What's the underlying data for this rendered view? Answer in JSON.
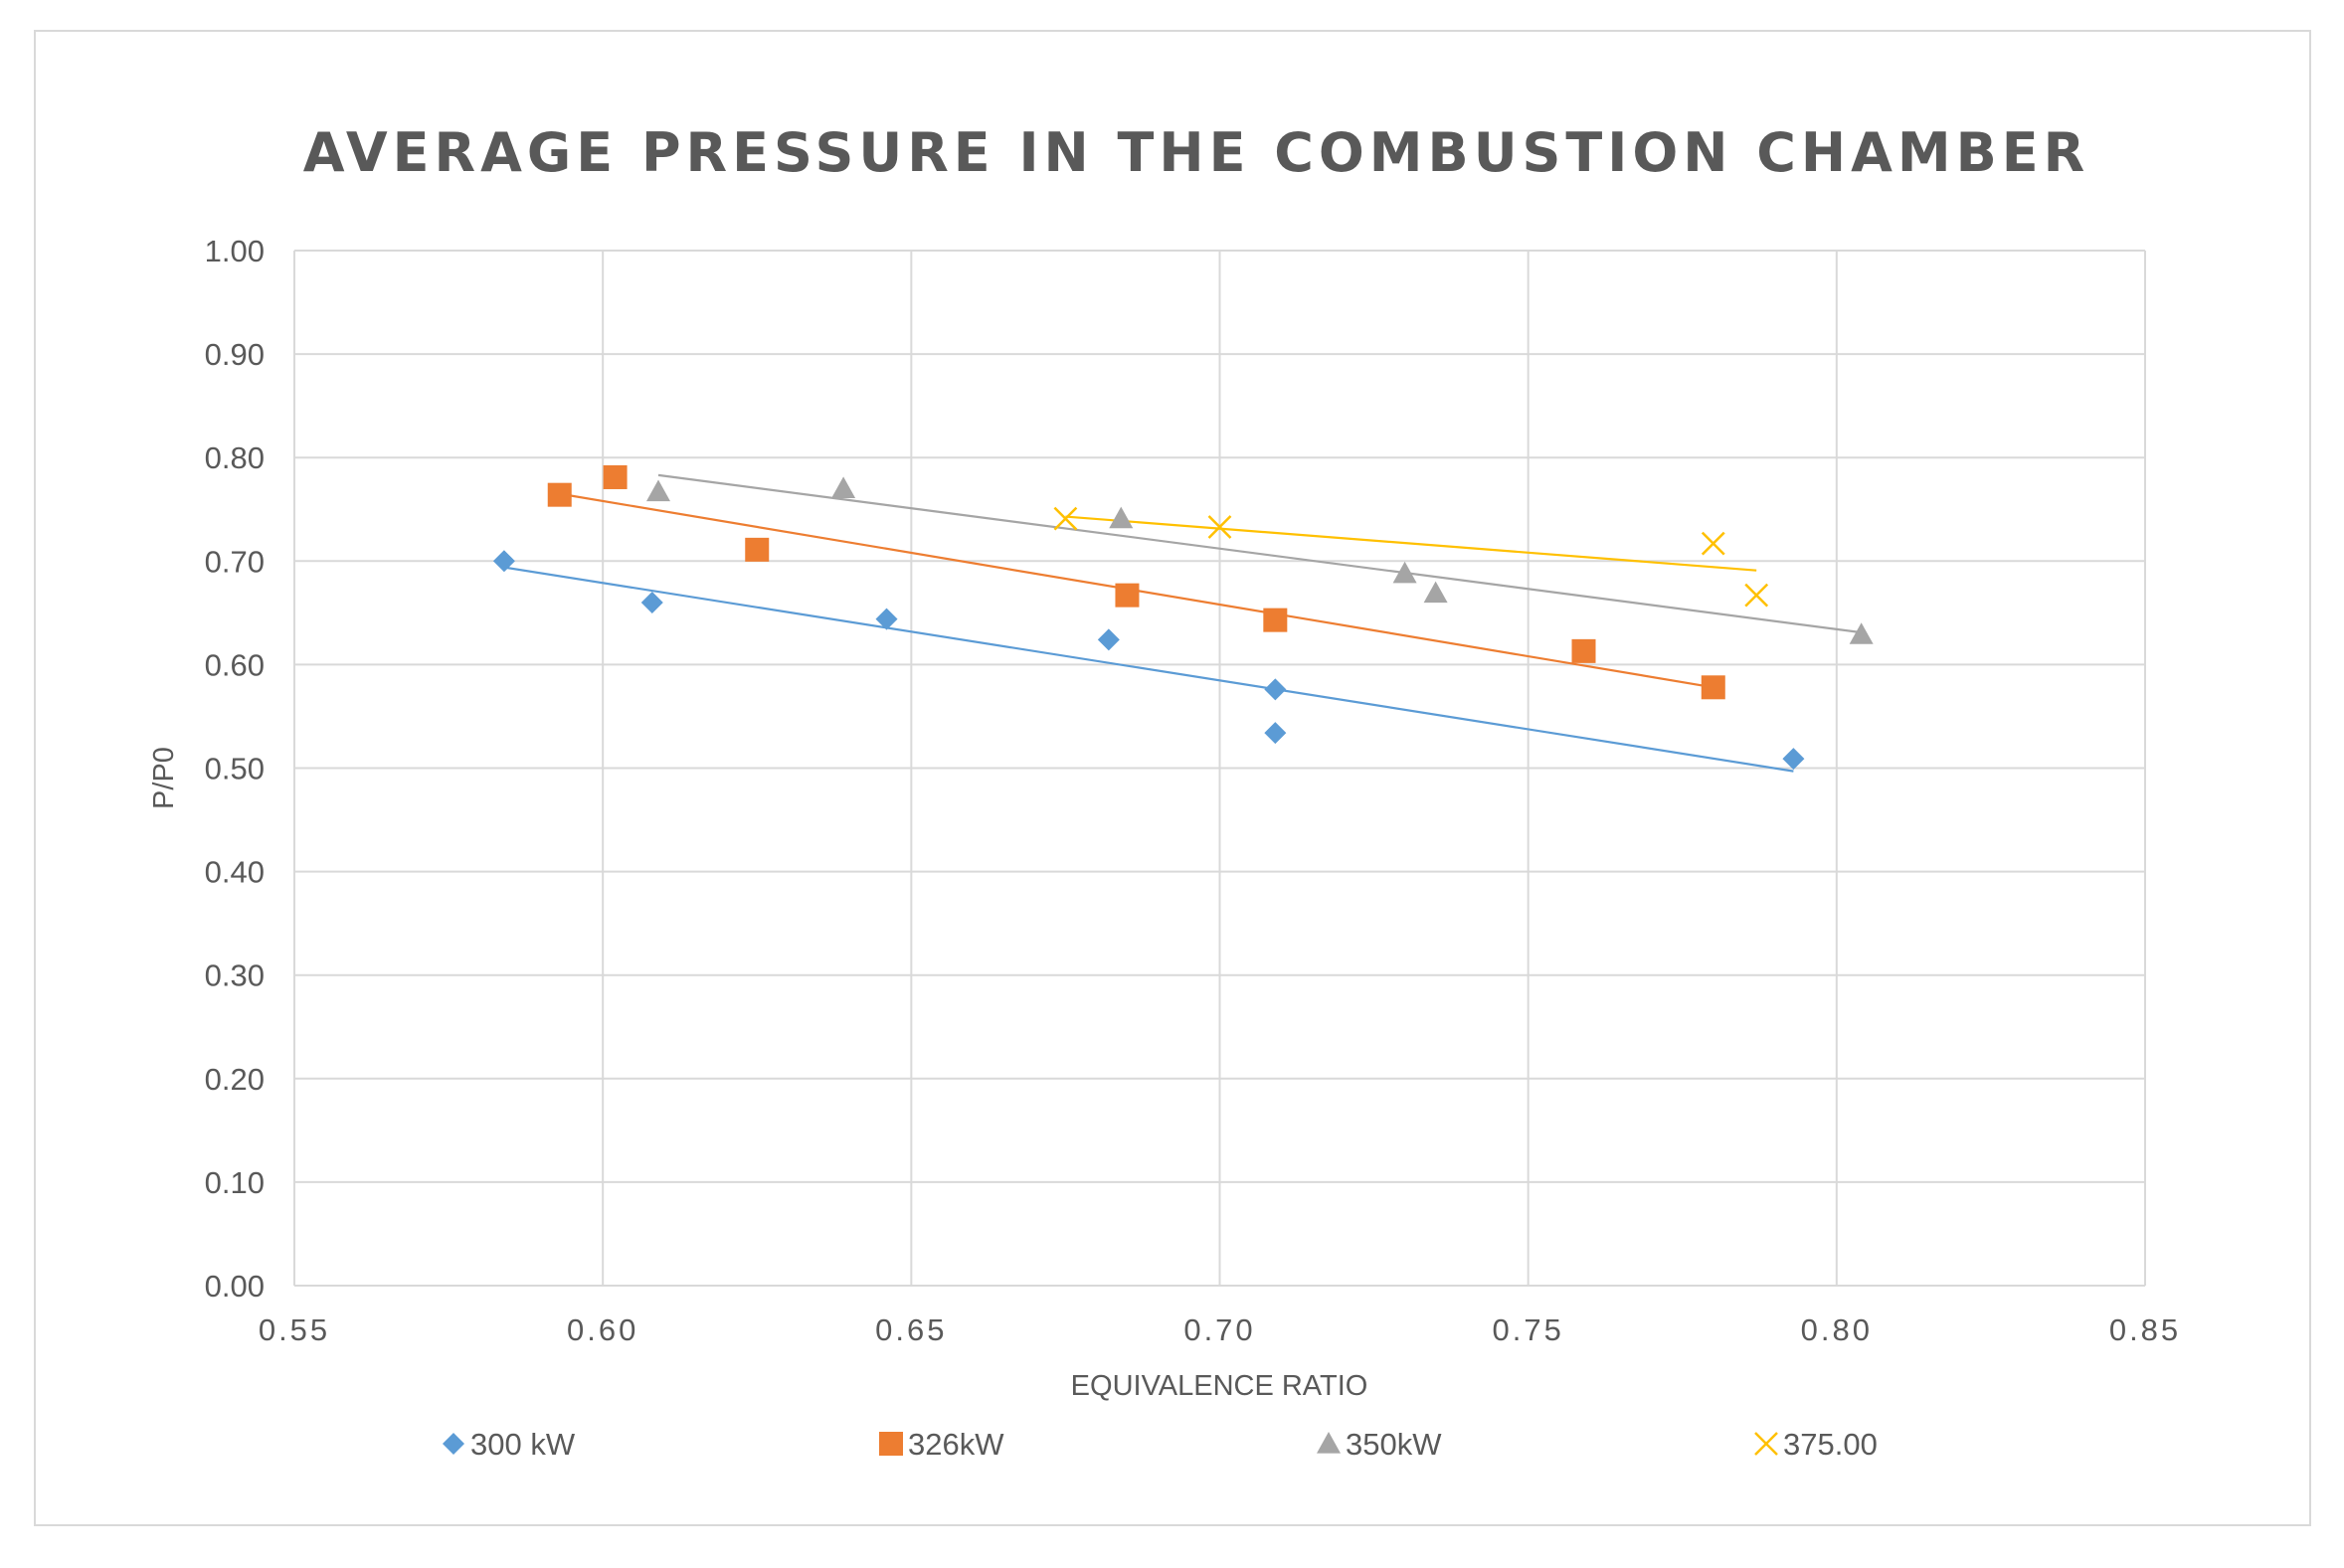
{
  "chart_data": {
    "type": "scatter",
    "title": "AVERAGE PRESSURE IN THE COMBUSTION CHAMBER",
    "xlabel": "EQUIVALENCE RATIO",
    "ylabel": "P/P0",
    "xlim": [
      0.55,
      0.85
    ],
    "ylim": [
      0.0,
      1.0
    ],
    "x_ticks": [
      "0.55",
      "0.60",
      "0.65",
      "0.70",
      "0.75",
      "0.80",
      "0.85"
    ],
    "y_ticks": [
      "0.00",
      "0.10",
      "0.20",
      "0.30",
      "0.40",
      "0.50",
      "0.60",
      "0.70",
      "0.80",
      "0.90",
      "1.00"
    ],
    "grid": true,
    "legend_position": "bottom",
    "series": [
      {
        "name": "300 kW",
        "marker": "diamond",
        "color": "#5b9bd5",
        "points": [
          [
            0.584,
            0.7
          ],
          [
            0.608,
            0.66
          ],
          [
            0.646,
            0.644
          ],
          [
            0.682,
            0.624
          ],
          [
            0.709,
            0.576
          ],
          [
            0.709,
            0.534
          ],
          [
            0.793,
            0.509
          ]
        ],
        "trendline": [
          [
            0.584,
            0.694
          ],
          [
            0.793,
            0.497
          ]
        ]
      },
      {
        "name": "326kW",
        "marker": "square",
        "color": "#ed7d31",
        "points": [
          [
            0.593,
            0.764
          ],
          [
            0.602,
            0.781
          ],
          [
            0.625,
            0.711
          ],
          [
            0.685,
            0.667
          ],
          [
            0.709,
            0.643
          ],
          [
            0.759,
            0.613
          ],
          [
            0.78,
            0.578
          ]
        ],
        "trendline": [
          [
            0.593,
            0.765
          ],
          [
            0.78,
            0.578
          ]
        ]
      },
      {
        "name": "350kW",
        "marker": "triangle",
        "color": "#a5a5a5",
        "points": [
          [
            0.609,
            0.767
          ],
          [
            0.639,
            0.77
          ],
          [
            0.684,
            0.741
          ],
          [
            0.73,
            0.688
          ],
          [
            0.735,
            0.669
          ],
          [
            0.804,
            0.629
          ]
        ],
        "trendline": [
          [
            0.609,
            0.783
          ],
          [
            0.804,
            0.631
          ]
        ]
      },
      {
        "name": "375.00",
        "marker": "x",
        "color": "#ffc000",
        "points": [
          [
            0.675,
            0.741
          ],
          [
            0.7,
            0.733
          ],
          [
            0.78,
            0.717
          ],
          [
            0.787,
            0.667
          ]
        ],
        "trendline": [
          [
            0.675,
            0.743
          ],
          [
            0.787,
            0.691
          ]
        ]
      }
    ]
  }
}
